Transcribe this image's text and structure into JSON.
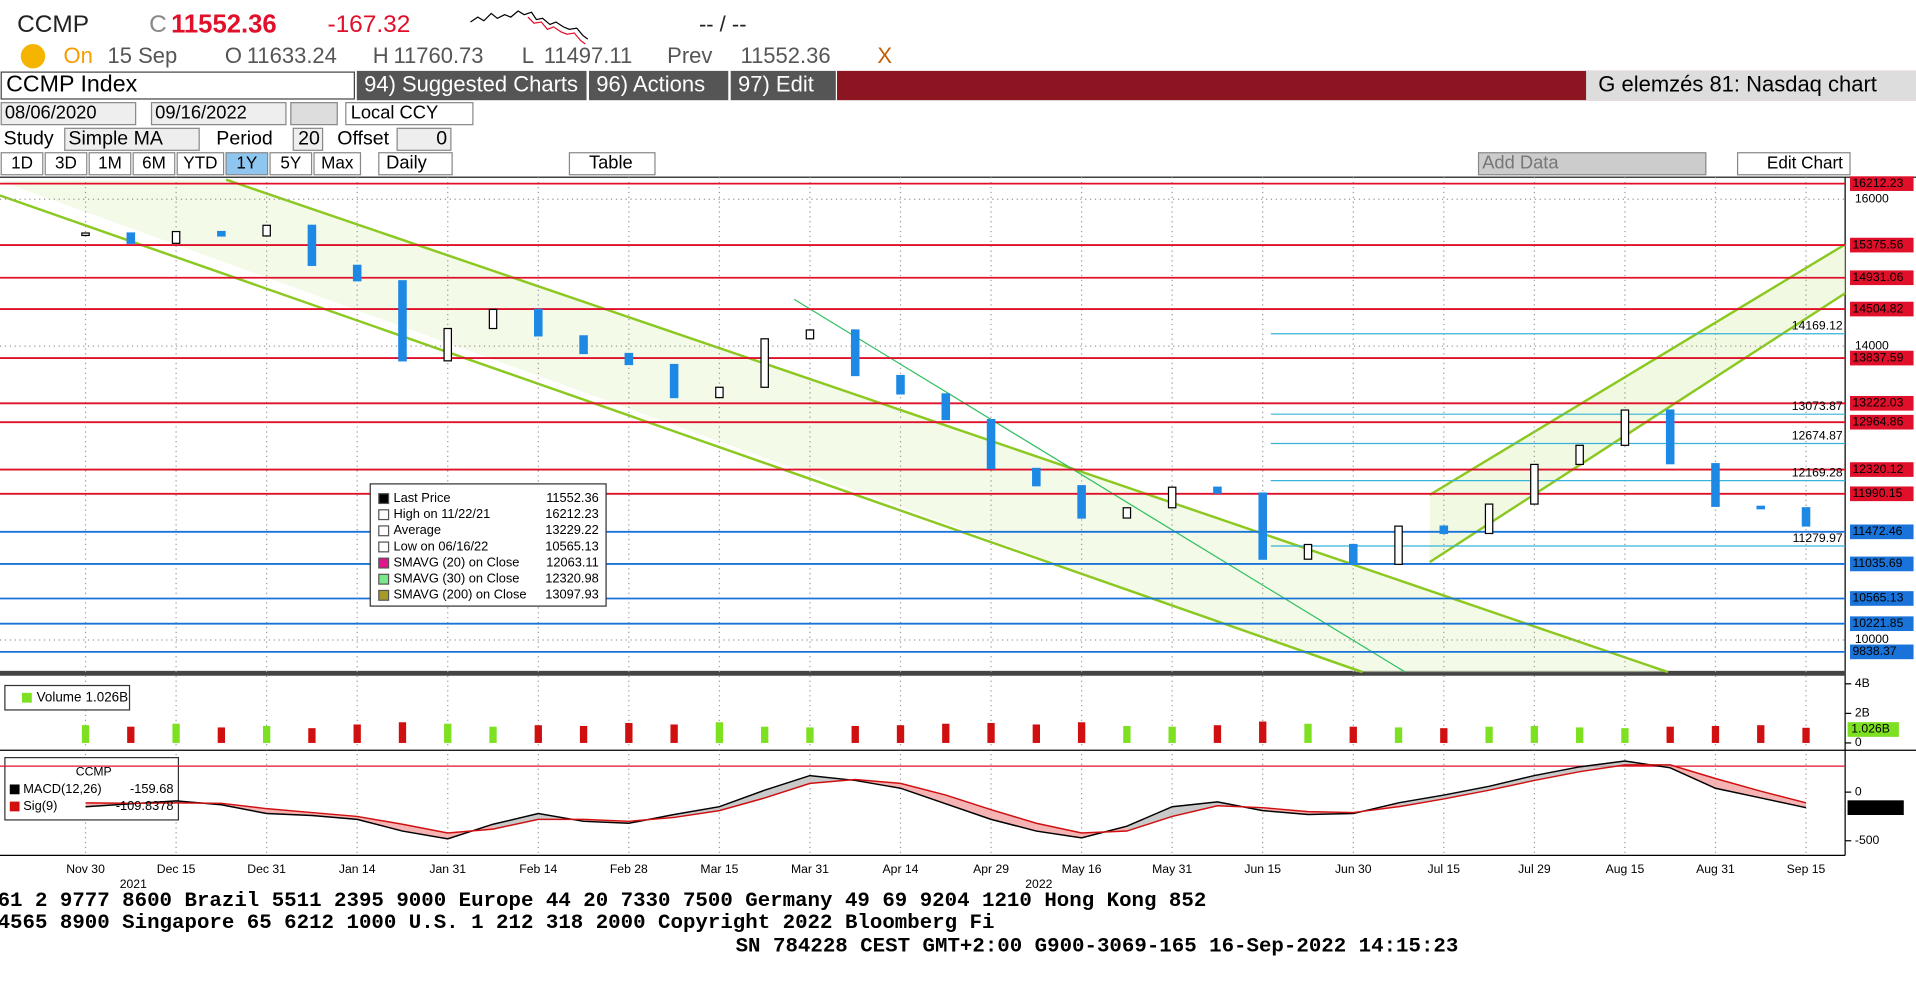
{
  "header": {
    "ticker": "CCMP",
    "price_prefix": "C",
    "price": "11552.36",
    "change": "-167.32",
    "quote": "-- / --",
    "on": "On",
    "date": "15 Sep",
    "open_label": "O",
    "open": "11633.24",
    "high_label": "H",
    "high": "11760.73",
    "low_label": "L",
    "low": "11497.11",
    "prev_label": "Prev",
    "prev": "11552.36",
    "close_x": "X"
  },
  "toolbar": {
    "security": "CCMP Index",
    "menus": [
      "94) Suggested Charts",
      "96) Actions",
      "97) Edit"
    ],
    "title": "G elemzés 81: Nasdaq chart"
  },
  "controls": {
    "start": "08/06/2020",
    "end": "09/16/2022",
    "currency": "Local CCY",
    "study_label": "Study",
    "study": "Simple MA",
    "period_label": "Period",
    "period": "20",
    "offset_label": "Offset",
    "offset": "0",
    "ranges": [
      "1D",
      "3D",
      "1M",
      "6M",
      "YTD",
      "1Y",
      "5Y",
      "Max"
    ],
    "active_range": "1Y",
    "frequency": "Daily",
    "table": "Table",
    "add_data": "Add Data",
    "edit_chart": "Edit Chart"
  },
  "chart_data": {
    "type": "line",
    "categories": [
      "Nov 30",
      null,
      "Dec 15",
      null,
      "Dec 31",
      null,
      "Jan 14",
      null,
      "Jan 31",
      null,
      "Feb 14",
      null,
      "Feb 28",
      null,
      "Mar 15",
      null,
      "Mar 31",
      null,
      "Apr 14",
      null,
      "Apr 29",
      null,
      "May 16",
      null,
      "May 31",
      null,
      "Jun 15",
      null,
      "Jun 30",
      null,
      "Jul 15",
      null,
      "Jul 29",
      null,
      "Aug 15",
      null,
      "Aug 31",
      null,
      "Sep 15"
    ],
    "years": [
      {
        "label": "2021",
        "at": "Dec 15"
      },
      {
        "label": "2022",
        "at": "May 16"
      }
    ],
    "series": [
      {
        "name": "Last Price",
        "color": "#1e88e5",
        "values": [
          15540,
          15400,
          15560,
          15500,
          15645,
          15100,
          14890,
          13800,
          14240,
          14500,
          14140,
          13900,
          13750,
          13300,
          13440,
          14100,
          14220,
          13600,
          13350,
          13000,
          12335,
          12100,
          11660,
          11800,
          12080,
          12000,
          11100,
          11300,
          11030,
          11550,
          11450,
          11850,
          12390,
          12650,
          13130,
          12400,
          11820,
          11800,
          11552
        ]
      }
    ],
    "ylim": [
      9580,
      16300
    ],
    "yticks": [
      10000,
      14000,
      16000
    ],
    "grid": true,
    "levels": [
      {
        "value": 16212.23,
        "color": "#e0102a"
      },
      {
        "value": 15375.56,
        "color": "#e0102a"
      },
      {
        "value": 14931.06,
        "color": "#e0102a"
      },
      {
        "value": 14504.82,
        "color": "#e0102a"
      },
      {
        "value": 14169.12,
        "color": "#36b3d9"
      },
      {
        "value": 13837.59,
        "color": "#e0102a"
      },
      {
        "value": 13222.03,
        "color": "#e0102a"
      },
      {
        "value": 13073.87,
        "color": "#36b3d9"
      },
      {
        "value": 12964.86,
        "color": "#e0102a"
      },
      {
        "value": 12674.87,
        "color": "#36b3d9"
      },
      {
        "value": 12320.12,
        "color": "#e0102a"
      },
      {
        "value": 12169.28,
        "color": "#36b3d9"
      },
      {
        "value": 11990.15,
        "color": "#e0102a"
      },
      {
        "value": 11472.46,
        "color": "#1a73d9"
      },
      {
        "value": 11279.97,
        "color": "#36b3d9"
      },
      {
        "value": 11035.69,
        "color": "#1a73d9"
      },
      {
        "value": 10565.13,
        "color": "#1a73d9"
      },
      {
        "value": 10221.85,
        "color": "#1a73d9"
      },
      {
        "value": 9838.37,
        "color": "#1a73d9"
      }
    ],
    "legend": [
      {
        "name": "Last Price",
        "value": "11552.36",
        "color": "#000"
      },
      {
        "name": "High on 11/22/21",
        "value": "16212.23",
        "color": "#fff"
      },
      {
        "name": "Average",
        "value": "13229.22",
        "color": "#fff"
      },
      {
        "name": "Low on 06/16/22",
        "value": "10565.13",
        "color": "#fff"
      },
      {
        "name": "SMAVG (20)  on Close",
        "value": "12063.11",
        "color": "#e0148c"
      },
      {
        "name": "SMAVG (30)  on Close",
        "value": "12320.98",
        "color": "#7de88a"
      },
      {
        "name": "SMAVG (200)  on Close",
        "value": "13097.93",
        "color": "#a89a2a"
      }
    ]
  },
  "volume_data": {
    "type": "bar",
    "name": "Volume",
    "label": "1.026B",
    "color": "#7de020",
    "down_color": "#d01010",
    "values": [
      1200000000,
      1100000000,
      1300000000,
      1050000000,
      1150000000,
      1000000000,
      1250000000,
      1400000000,
      1300000000,
      1100000000,
      1200000000,
      1150000000,
      1350000000,
      1250000000,
      1400000000,
      1100000000,
      1050000000,
      1150000000,
      1200000000,
      1300000000,
      1350000000,
      1250000000,
      1400000000,
      1150000000,
      1100000000,
      1200000000,
      1450000000,
      1300000000,
      1100000000,
      1050000000,
      1000000000,
      1100000000,
      1150000000,
      1050000000,
      1000000000,
      1100000000,
      1150000000,
      1200000000,
      1026000000
    ],
    "value_labels_last": "1.026B",
    "ylim": [
      0,
      4300000000
    ],
    "yticks": [
      0,
      {
        "value": 2000000000,
        "label": "2B"
      },
      {
        "value": 4000000000,
        "label": "4B"
      }
    ]
  },
  "macd_data": {
    "type": "line",
    "title": "CCMP",
    "series": [
      {
        "name": "MACD(12,26)",
        "color": "#000",
        "last": "-159.68",
        "values": [
          -150,
          -120,
          -90,
          -130,
          -220,
          -240,
          -280,
          -400,
          -480,
          -330,
          -220,
          -300,
          -320,
          -230,
          -150,
          20,
          170,
          120,
          40,
          -120,
          -280,
          -400,
          -470,
          -350,
          -150,
          -100,
          -190,
          -230,
          -220,
          -110,
          -30,
          60,
          170,
          260,
          320,
          250,
          40,
          -60,
          -159.68
        ]
      },
      {
        "name": "Sig(9)",
        "color": "#d01010",
        "last": "-109.8378",
        "values": [
          -110,
          -115,
          -110,
          -115,
          -170,
          -210,
          -250,
          -330,
          -420,
          -380,
          -280,
          -280,
          -300,
          -260,
          -190,
          -60,
          90,
          130,
          90,
          -30,
          -180,
          -320,
          -420,
          -400,
          -250,
          -140,
          -160,
          -200,
          -210,
          -150,
          -70,
          20,
          120,
          210,
          280,
          280,
          140,
          10,
          -109.8378
        ]
      }
    ],
    "last_label": "-159.68",
    "ylim": [
      -650,
      380
    ],
    "yticks": [
      0,
      -500
    ]
  },
  "footer": {
    "lines": [
      "61 2 9777 8600 Brazil 5511 2395 9000 Europe 44 20 7330 7500 Germany 49 69 9204 1210 Hong Kong 852",
      "4565 8900        Singapore 65 6212 1000        U.S. 1 212 318 2000        Copyright 2022 Bloomberg Fi",
      "SN 784228 CEST GMT+2:00 G900-3069-165 16-Sep-2022 14:15:23"
    ]
  }
}
